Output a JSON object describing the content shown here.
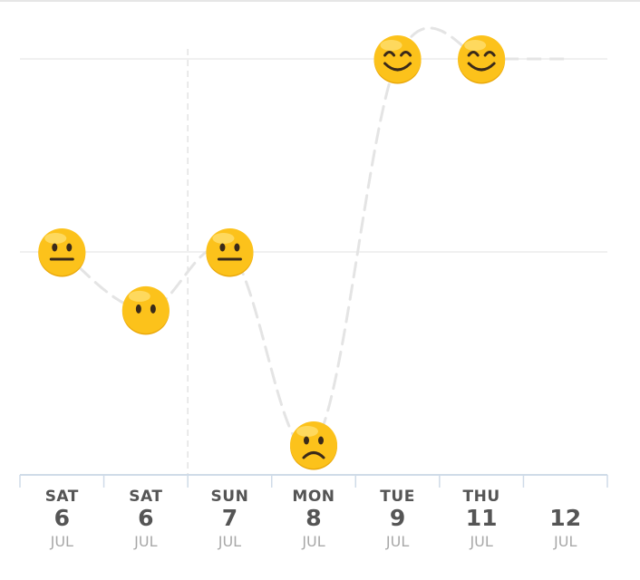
{
  "chart_data": {
    "type": "line",
    "title": "",
    "xlabel": "",
    "ylabel": "",
    "ylim": [
      1,
      5
    ],
    "levels": [
      "frown",
      "neutral-blank",
      "neutral",
      "smile"
    ],
    "colors": {
      "line": "#e4e4e4",
      "grid": "#ececec",
      "axis": "#cfdbe8",
      "emoji_face": "#fcc21b",
      "emoji_feature": "#3a2a1a"
    },
    "days": [
      {
        "dow": "SAT",
        "dom": "6",
        "mon": "JUL"
      },
      {
        "dow": "SAT",
        "dom": "6",
        "mon": "JUL"
      },
      {
        "dow": "SUN",
        "dom": "7",
        "mon": "JUL"
      },
      {
        "dow": "MON",
        "dom": "8",
        "mon": "JUL"
      },
      {
        "dow": "TUE",
        "dom": "9",
        "mon": "JUL"
      },
      {
        "dow": "THU",
        "dom": "11",
        "mon": "JUL"
      },
      {
        "dow": "",
        "dom": "12",
        "mon": "JUL"
      }
    ],
    "points": [
      {
        "day_index": 0,
        "value": 3,
        "mood": "neutral"
      },
      {
        "day_index": 1,
        "value": 2.4,
        "mood": "neutral-blank"
      },
      {
        "day_index": 2,
        "value": 3,
        "mood": "neutral"
      },
      {
        "day_index": 3,
        "value": 1,
        "mood": "frown"
      },
      {
        "day_index": 4,
        "value": 5,
        "mood": "smile"
      },
      {
        "day_index": 5,
        "value": 5,
        "mood": "smile"
      }
    ],
    "trailing_value": 5,
    "gridlines": [
      3,
      5
    ],
    "grid": true,
    "today_marker": true
  }
}
